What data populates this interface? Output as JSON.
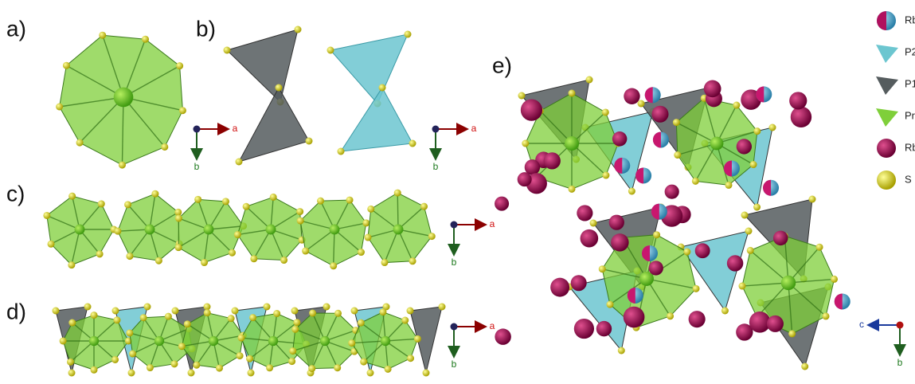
{
  "panels": [
    {
      "label": "a)",
      "axes": [
        "a",
        "b"
      ]
    },
    {
      "label": "b)",
      "axes": [
        "a",
        "b"
      ]
    },
    {
      "label": "c)",
      "axes": [
        "a",
        "b"
      ]
    },
    {
      "label": "d)",
      "axes": [
        "a",
        "b"
      ]
    },
    {
      "label": "e)",
      "axes": [
        "c",
        "b"
      ]
    }
  ],
  "legend": [
    "Rb/Na",
    "P2",
    "P1",
    "Pr",
    "Rb",
    "S"
  ]
}
